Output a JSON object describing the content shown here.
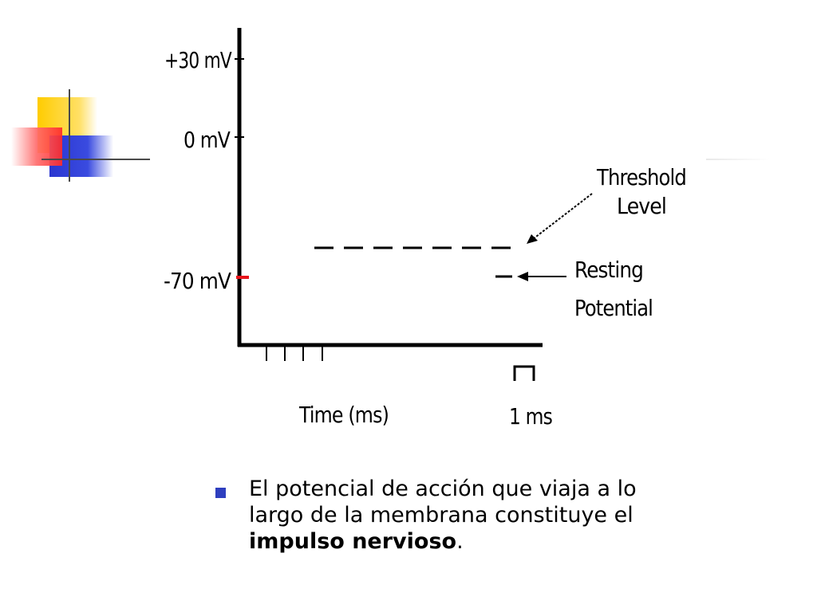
{
  "diagram": {
    "y_axis_labels": {
      "plus30": "+30 mV",
      "zero": "0 mV",
      "minus70": "-70 mV"
    },
    "threshold_label": [
      "Threshold",
      "Level"
    ],
    "resting_label": [
      "Resting",
      "Potential"
    ],
    "x_axis_label": "Time (ms)",
    "scale_label": "1 ms",
    "colors": {
      "axis": "#000000",
      "resting_marker": "#e8141a"
    }
  },
  "bullet": {
    "text_before": "El potencial de acción que viaja a lo largo de la membrana constituye el ",
    "bold_text": "impulso nervioso",
    "text_after": "."
  },
  "decoration": {
    "colors": [
      "#ffd200",
      "#ff3b3b",
      "#2f3fd6",
      "#555555"
    ],
    "icon": "corner-squares-icon"
  }
}
